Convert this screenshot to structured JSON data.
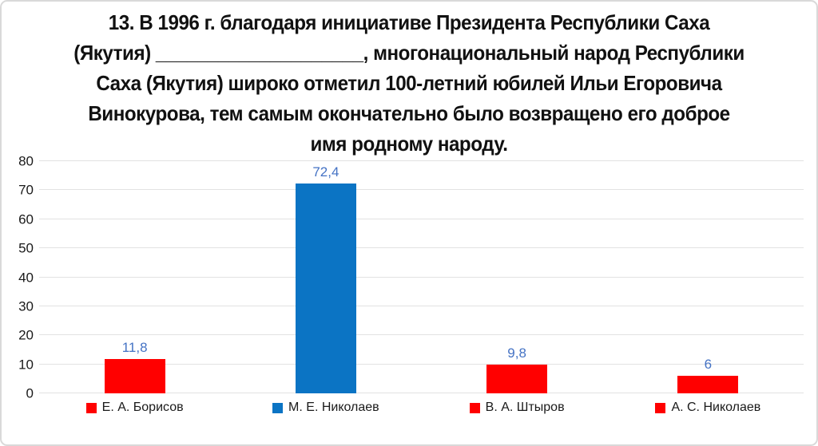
{
  "frame": {
    "background": "#ffffff",
    "border_color": "#d9d9d9"
  },
  "title": {
    "lines": [
      "13. В 1996 г. благодаря инициативе Президента Республики Саха",
      "(Якутия) ____________________, многонациональный народ Республики",
      "Саха (Якутия) широко отметил 100-летний юбилей Ильи Егоровича",
      "Винокурова, тем самым окончательно было возвращено его доброе",
      "имя родному народу."
    ]
  },
  "chart_data": {
    "type": "bar",
    "title": "",
    "xlabel": "",
    "ylabel": "",
    "categories": [
      "Е. А. Борисов",
      "М. Е. Николаев",
      "В. А. Штыров",
      "А. С. Николаев"
    ],
    "values": [
      11.8,
      72.4,
      9.8,
      6
    ],
    "value_labels": [
      "11,8",
      "72,4",
      "9,8",
      "6"
    ],
    "bar_colors": [
      "#ff0000",
      "#0b74c4",
      "#ff0000",
      "#ff0000"
    ],
    "value_label_color": "#4472c4",
    "y_axis": {
      "min": 0,
      "max": 80,
      "tick_interval": 10,
      "tick_labels": [
        "0",
        "10",
        "20",
        "30",
        "40",
        "50",
        "60",
        "70",
        "80"
      ]
    },
    "grid": true,
    "gridline_color": "#e2e2e2",
    "legend_position": "bottom",
    "legend": [
      {
        "label": "Е. А. Борисов",
        "color": "#ff0000"
      },
      {
        "label": "М. Е. Николаев",
        "color": "#0b74c4"
      },
      {
        "label": "В. А. Штыров",
        "color": "#ff0000"
      },
      {
        "label": "А. С. Николаев",
        "color": "#ff0000"
      }
    ]
  }
}
